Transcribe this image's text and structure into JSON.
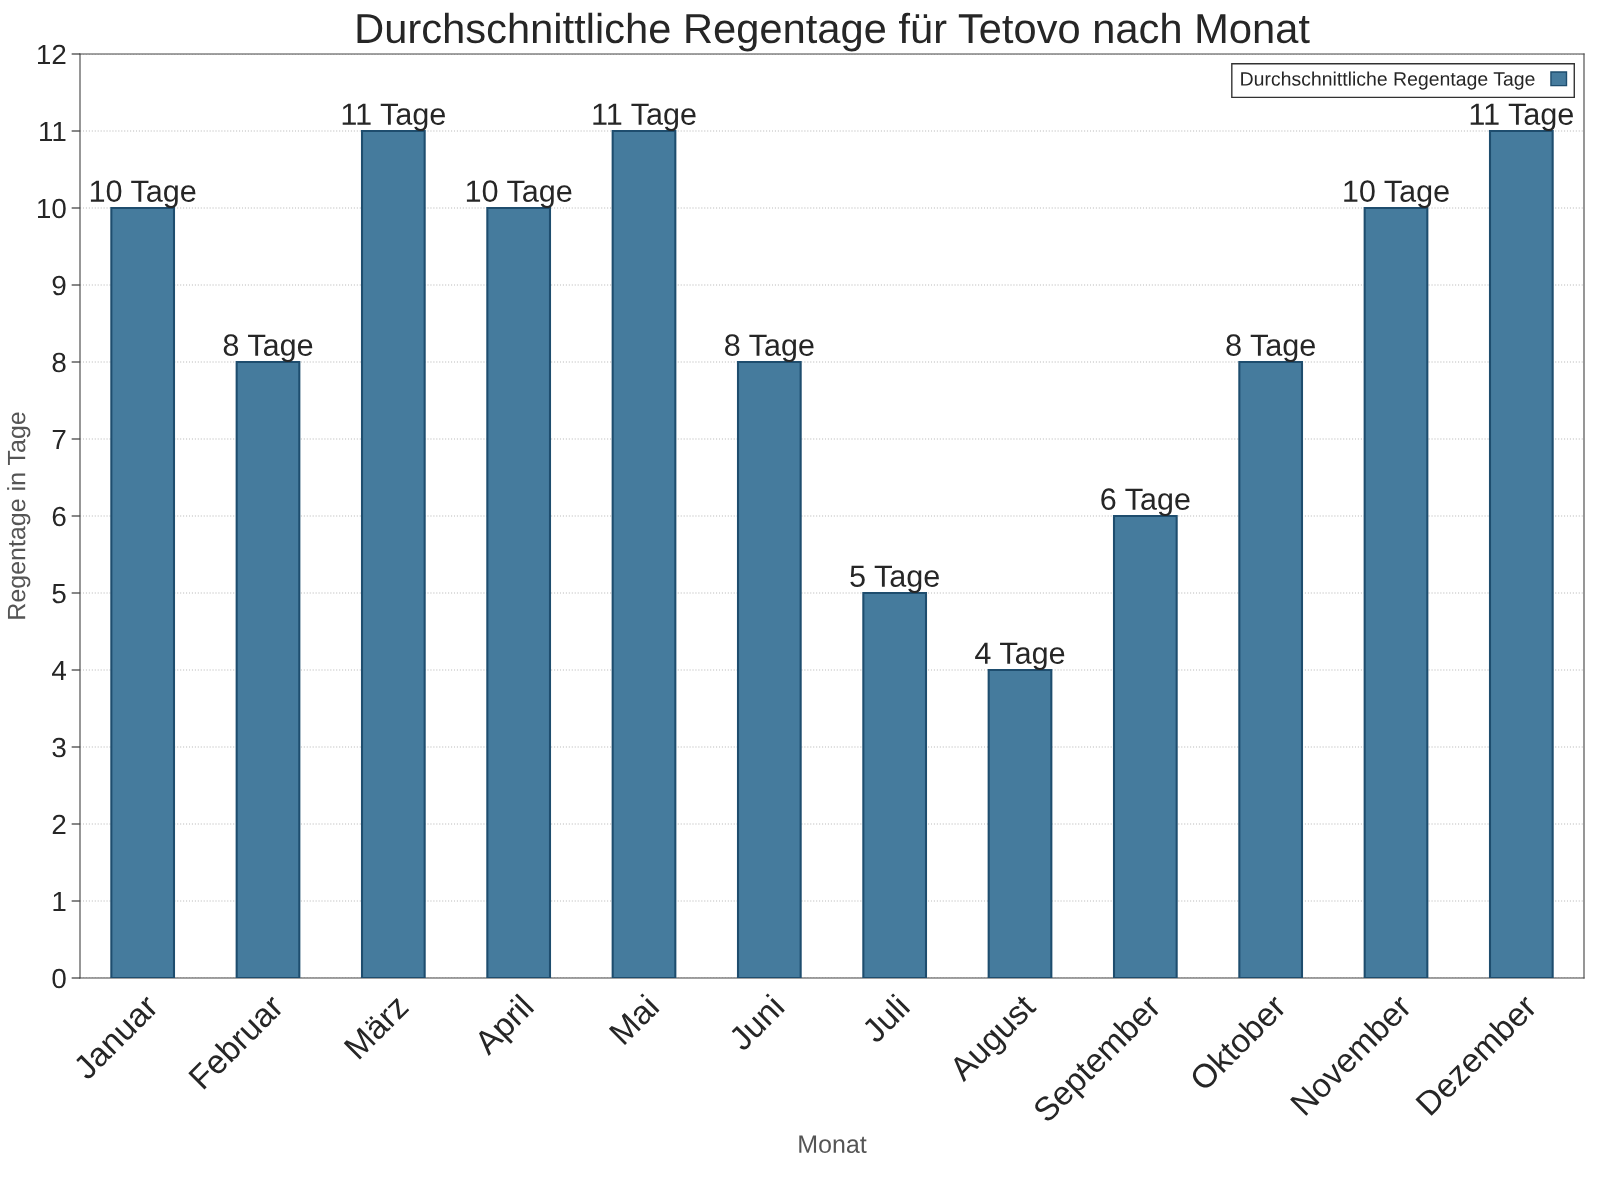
{
  "chart_data": {
    "type": "bar",
    "title": "Durchschnittliche Regentage für Tetovo nach Monat",
    "xlabel": "Monat",
    "ylabel": "Regentage in Tage",
    "categories": [
      "Januar",
      "Februar",
      "März",
      "April",
      "Mai",
      "Juni",
      "Juli",
      "August",
      "September",
      "Oktober",
      "November",
      "Dezember"
    ],
    "series": [
      {
        "name": "Durchschnittliche Regentage Tage",
        "color": "#457b9d",
        "values": [
          10,
          8,
          11,
          10,
          11,
          8,
          5,
          4,
          6,
          8,
          10,
          11
        ],
        "value_labels": [
          "10 Tage",
          "8 Tage",
          "11 Tage",
          "10 Tage",
          "11 Tage",
          "8 Tage",
          "5 Tage",
          "4 Tage",
          "6 Tage",
          "8 Tage",
          "10 Tage",
          "11 Tage"
        ]
      }
    ],
    "ylim": [
      0,
      12
    ],
    "yticks": [
      0,
      1,
      2,
      3,
      4,
      5,
      6,
      7,
      8,
      9,
      10,
      11,
      12
    ],
    "grid": "y",
    "legend": "top right"
  }
}
